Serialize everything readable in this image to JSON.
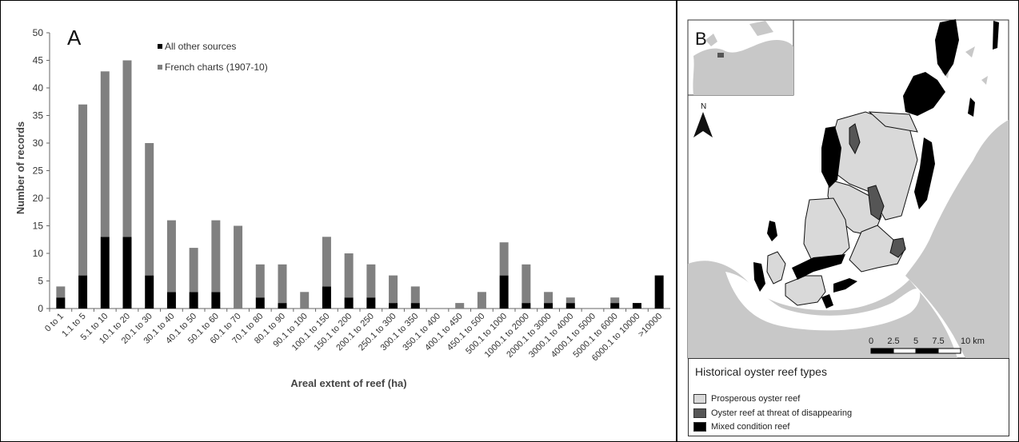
{
  "chart_data": {
    "type": "bar",
    "stacked": true,
    "panel_label": "A",
    "title": "",
    "xlabel": "Areal extent of reef (ha)",
    "ylabel": "Number of records",
    "ylim": [
      0,
      50
    ],
    "yticks": [
      0,
      5,
      10,
      15,
      20,
      25,
      30,
      35,
      40,
      45,
      50
    ],
    "grid": false,
    "legend_position": "top-center",
    "categories": [
      "0 to 1",
      "1.1 to 5",
      "5.1 to 10",
      "10.1 to 20",
      "20.1 to 30",
      "30.1 to 40",
      "40.1 to 50",
      "50.1 to 60",
      "60.1 to 70",
      "70.1 to 80",
      "80.1 to 90",
      "90.1 to 100",
      "100.1 to 150",
      "150.1 to 200",
      "200.1 to 250",
      "250.1 to 300",
      "300.1 to 350",
      "350.1 to 400",
      "400.1 to 450",
      "450.1 to 500",
      "500.1 to 1000",
      "1000.1 to 2000",
      "2000.1 to 3000",
      "3000.1 to 4000",
      "4000.1 to 5000",
      "5000.1 to 6000",
      "6000.1 to 10000",
      ">10000"
    ],
    "series": [
      {
        "name": "All other sources",
        "color": "#000000",
        "values": [
          2,
          6,
          13,
          13,
          6,
          3,
          3,
          3,
          0,
          2,
          1,
          0,
          4,
          2,
          2,
          1,
          1,
          0,
          0,
          0,
          6,
          1,
          1,
          1,
          0,
          1,
          1,
          6
        ]
      },
      {
        "name": "French charts (1907-10)",
        "color": "#808080",
        "values": [
          2,
          31,
          30,
          32,
          24,
          13,
          8,
          13,
          15,
          6,
          7,
          3,
          9,
          8,
          6,
          5,
          3,
          0,
          1,
          3,
          6,
          7,
          2,
          1,
          0,
          1,
          0,
          0
        ]
      }
    ]
  },
  "map": {
    "panel_label": "B",
    "north_label": "N",
    "scale_labels": [
      "0",
      "2.5",
      "5",
      "7.5",
      "10 km"
    ],
    "legend_title": "Historical oyster reef types",
    "legend_items": [
      {
        "label": "Prosperous oyster reef",
        "color": "#d9d9d9"
      },
      {
        "label": "Oyster reef at threat of disappearing",
        "color": "#555555"
      },
      {
        "label": "Mixed condition reef",
        "color": "#000000"
      }
    ],
    "colors": {
      "land": "#c8c8c8",
      "water": "#ffffff"
    }
  }
}
